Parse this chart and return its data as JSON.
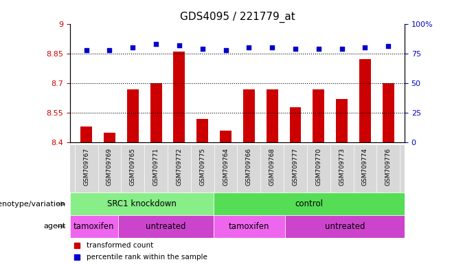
{
  "title": "GDS4095 / 221779_at",
  "categories": [
    "GSM709767",
    "GSM709769",
    "GSM709765",
    "GSM709771",
    "GSM709772",
    "GSM709775",
    "GSM709764",
    "GSM709766",
    "GSM709768",
    "GSM709777",
    "GSM709770",
    "GSM709773",
    "GSM709774",
    "GSM709776"
  ],
  "bar_values": [
    8.48,
    8.45,
    8.67,
    8.7,
    8.86,
    8.52,
    8.46,
    8.67,
    8.67,
    8.58,
    8.67,
    8.62,
    8.82,
    8.7
  ],
  "percentile_values": [
    78,
    78,
    80,
    83,
    82,
    79,
    78,
    80,
    80,
    79,
    79,
    79,
    80,
    81
  ],
  "bar_color": "#cc0000",
  "dot_color": "#0000cc",
  "ylim_left": [
    8.4,
    9.0
  ],
  "ylim_right": [
    0,
    100
  ],
  "yticks_left": [
    8.4,
    8.55,
    8.7,
    8.85,
    9.0
  ],
  "yticks_right": [
    0,
    25,
    50,
    75,
    100
  ],
  "ytick_labels_left": [
    "8.4",
    "8.55",
    "8.7",
    "8.85",
    "9"
  ],
  "ytick_labels_right": [
    "0",
    "25",
    "50",
    "75",
    "100%"
  ],
  "hlines": [
    8.55,
    8.7,
    8.85
  ],
  "genotype_groups": [
    {
      "label": "SRC1 knockdown",
      "start": 0,
      "end": 6,
      "color": "#88ee88"
    },
    {
      "label": "control",
      "start": 6,
      "end": 14,
      "color": "#55dd55"
    }
  ],
  "agent_groups": [
    {
      "label": "tamoxifen",
      "start": 0,
      "end": 2,
      "color": "#ee66ee"
    },
    {
      "label": "untreated",
      "start": 2,
      "end": 6,
      "color": "#cc44cc"
    },
    {
      "label": "tamoxifen",
      "start": 6,
      "end": 9,
      "color": "#ee66ee"
    },
    {
      "label": "untreated",
      "start": 9,
      "end": 14,
      "color": "#cc44cc"
    }
  ],
  "legend_items": [
    {
      "label": "transformed count",
      "color": "#cc0000"
    },
    {
      "label": "percentile rank within the sample",
      "color": "#0000cc"
    }
  ],
  "genotype_label": "genotype/variation",
  "agent_label": "agent",
  "bar_bottom": 8.4,
  "tick_color_left": "#cc0000",
  "tick_color_right": "#0000cc",
  "bar_width": 0.5,
  "font_size_title": 11,
  "font_size_ticks": 8,
  "xtick_bg_color": "#d8d8d8"
}
